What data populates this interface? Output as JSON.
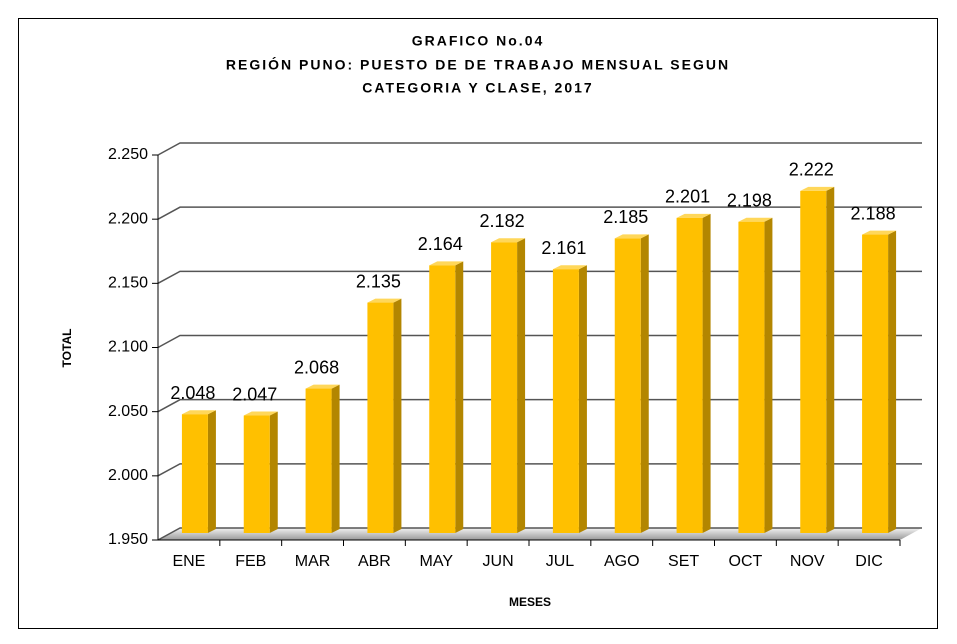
{
  "chart_data": {
    "type": "bar3d",
    "title": [
      "GRAFICO No.04",
      "REGIÓN PUNO: PUESTO DE DE TRABAJO MENSUAL SEGUN",
      "CATEGORIA Y CLASE, 2017"
    ],
    "x_label": "MESES",
    "y_label": "TOTAL",
    "categories": [
      "ENE",
      "FEB",
      "MAR",
      "ABR",
      "MAY",
      "JUN",
      "JUL",
      "AGO",
      "SET",
      "OCT",
      "NOV",
      "DIC"
    ],
    "values": [
      2048,
      2047,
      2068,
      2135,
      2164,
      2182,
      2161,
      2185,
      2201,
      2198,
      2222,
      2188
    ],
    "value_labels": [
      "2.048",
      "2.047",
      "2.068",
      "2.135",
      "2.164",
      "2.182",
      "2.161",
      "2.185",
      "2.201",
      "2.198",
      "2.222",
      "2.188"
    ],
    "color": "#ffc000",
    "ylim": [
      1950,
      2250
    ],
    "yticks": [
      {
        "value": 1950,
        "label": "1.950"
      },
      {
        "value": 2000,
        "label": "2.000"
      },
      {
        "value": 2050,
        "label": "2.050"
      },
      {
        "value": 2100,
        "label": "2.100"
      },
      {
        "value": 2150,
        "label": "2.150"
      },
      {
        "value": 2200,
        "label": "2.200"
      },
      {
        "value": 2250,
        "label": "2.250"
      }
    ],
    "grid": true
  }
}
